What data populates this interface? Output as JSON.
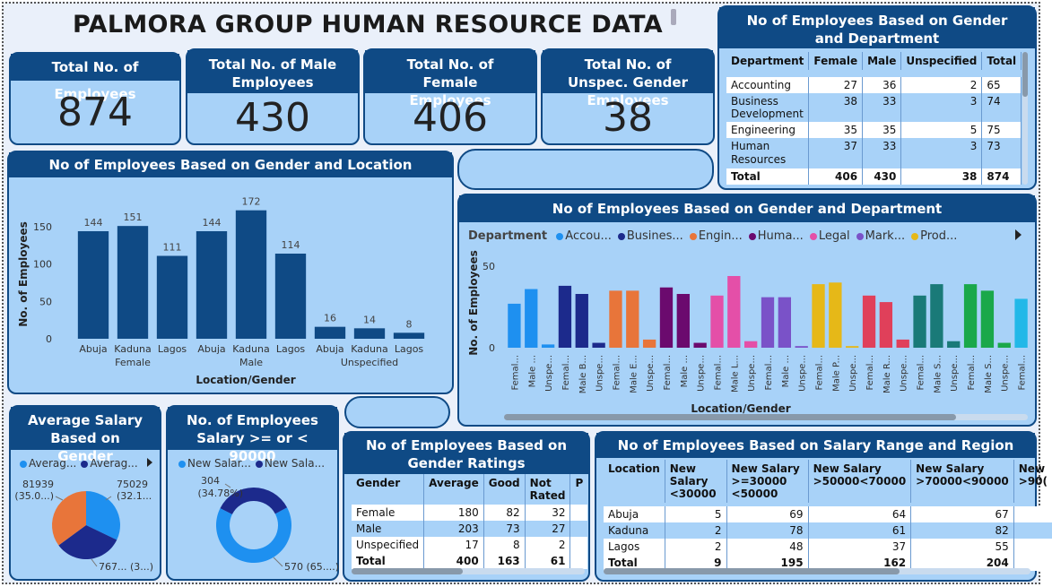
{
  "title": "PALMORA GROUP HUMAN RESOURCE DATA",
  "kpis": [
    {
      "label": "Total No. of Employees",
      "value": "874"
    },
    {
      "label": "Total No. of Male Employees",
      "value": "430"
    },
    {
      "label": "Total No. of Female Employees",
      "value": "406"
    },
    {
      "label": "Total No. of Unspec. Gender Employees",
      "value": "38"
    }
  ],
  "dept_table": {
    "title": "No of Employees Based on Gender and Department",
    "headers": [
      "Department",
      "Female",
      "Male",
      "Unspecified",
      "Total"
    ],
    "rows": [
      [
        "Accounting",
        "27",
        "36",
        "2",
        "65"
      ],
      [
        "Business Development",
        "38",
        "33",
        "3",
        "74"
      ],
      [
        "Engineering",
        "35",
        "35",
        "5",
        "75"
      ],
      [
        "Human Resources",
        "37",
        "33",
        "3",
        "73"
      ]
    ],
    "total": [
      "Total",
      "406",
      "430",
      "38",
      "874"
    ]
  },
  "ratings_table": {
    "title": "No of Employees Based on Gender Ratings",
    "headers": [
      "Gender",
      "Average",
      "Good",
      "Not Rated",
      "P"
    ],
    "rows": [
      [
        "Female",
        "180",
        "82",
        "32"
      ],
      [
        "Male",
        "203",
        "73",
        "27"
      ],
      [
        "Unspecified",
        "17",
        "8",
        "2"
      ]
    ],
    "total": [
      "Total",
      "400",
      "163",
      "61"
    ]
  },
  "salary_region_table": {
    "title": "No of Employees Based on Salary Range and Region",
    "headers": [
      "Location",
      "New Salary <30000",
      "New Salary >=30000 <50000",
      "New Salary >50000<70000",
      "New Salary >70000<90000",
      "New >90("
    ],
    "rows": [
      [
        "Abuja",
        "5",
        "69",
        "64",
        "67"
      ],
      [
        "Kaduna",
        "2",
        "78",
        "61",
        "82"
      ],
      [
        "Lagos",
        "2",
        "48",
        "37",
        "55"
      ]
    ],
    "total": [
      "Total",
      "9",
      "195",
      "162",
      "204"
    ]
  },
  "chart_data": [
    {
      "type": "bar",
      "title": "No of Employees Based on Gender and Location",
      "xlabel": "Location/Gender",
      "ylabel": "No. of Employees",
      "categories": [
        "Abuja",
        "Kaduna",
        "Lagos",
        "Abuja",
        "Kaduna",
        "Lagos",
        "Abuja",
        "Kaduna",
        "Lagos"
      ],
      "groups": [
        "Female",
        "Male",
        "Unspecified"
      ],
      "values": [
        144,
        151,
        111,
        144,
        172,
        114,
        16,
        14,
        8
      ],
      "yticks": [
        "0",
        "50",
        "100",
        "150"
      ],
      "ylim": [
        0,
        180
      ],
      "color": "#0f4a85"
    },
    {
      "type": "bar",
      "title": "No of Employees Based on Gender and Department",
      "xlabel": "Location/Gender",
      "ylabel": "No. of Employees",
      "legend_title": "Department",
      "legend": [
        {
          "name": "Accou...",
          "color": "#1e90f0"
        },
        {
          "name": "Busines...",
          "color": "#1c2a8c"
        },
        {
          "name": "Engin...",
          "color": "#e8753a"
        },
        {
          "name": "Huma...",
          "color": "#6b0a6e"
        },
        {
          "name": "Legal",
          "color": "#e44fa8"
        },
        {
          "name": "Mark...",
          "color": "#7a52c8"
        },
        {
          "name": "Prod...",
          "color": "#e6b818"
        }
      ],
      "categories": [
        "Femal...",
        "Male ...",
        "Unspe...",
        "Femal...",
        "Male B...",
        "Unspe...",
        "Femal...",
        "Male E...",
        "Unspe...",
        "Femal...",
        "Male ...",
        "Unspe...",
        "Femal...",
        "Male L...",
        "Unspe...",
        "Femal...",
        "Male ...",
        "Unspe...",
        "Femal...",
        "Male P...",
        "Unspe...",
        "Femal...",
        "Male R...",
        "Unspe...",
        "Femal...",
        "Male S...",
        "Unspe...",
        "Femal...",
        "Male S...",
        "Unspe...",
        "Femal..."
      ],
      "values": [
        27,
        36,
        2,
        38,
        33,
        3,
        35,
        35,
        5,
        37,
        33,
        3,
        32,
        44,
        4,
        31,
        31,
        1,
        39,
        40,
        1,
        32,
        28,
        5,
        32,
        39,
        4,
        39,
        35,
        3,
        30
      ],
      "colors": [
        "#1e90f0",
        "#1e90f0",
        "#1e90f0",
        "#1c2a8c",
        "#1c2a8c",
        "#1c2a8c",
        "#e8753a",
        "#e8753a",
        "#e8753a",
        "#6b0a6e",
        "#6b0a6e",
        "#6b0a6e",
        "#e44fa8",
        "#e44fa8",
        "#e44fa8",
        "#7a52c8",
        "#7a52c8",
        "#7a52c8",
        "#e6b818",
        "#e6b818",
        "#e6b818",
        "#e0405a",
        "#e0405a",
        "#e0405a",
        "#1a7a78",
        "#1a7a78",
        "#1a7a78",
        "#1aa84a",
        "#1aa84a",
        "#1aa84a",
        "#22b8e8"
      ],
      "yticks": [
        "0",
        "50"
      ],
      "ylim": [
        0,
        55
      ]
    },
    {
      "type": "pie",
      "title": "Average Salary Based on Gender",
      "legend": [
        {
          "name": "Averag...",
          "color": "#1e90f0"
        },
        {
          "name": "Averag...",
          "color": "#1c2a8c"
        }
      ],
      "slices": [
        {
          "value": 75029,
          "label": "75029",
          "pct": "(32.1...",
          "color": "#1e90f0"
        },
        {
          "value": 76700,
          "label": "767...",
          "pct": "(3...)",
          "color": "#1c2a8c"
        },
        {
          "value": 81939,
          "label": "81939",
          "pct": "(35.0...)",
          "color": "#e8753a"
        }
      ]
    },
    {
      "type": "pie",
      "title": "No. of Employees Salary >= or < 90000",
      "legend": [
        {
          "name": "New Salar...",
          "color": "#1e90f0"
        },
        {
          "name": "New Sala...",
          "color": "#1c2a8c"
        }
      ],
      "slices": [
        {
          "value": 570,
          "label": "570",
          "pct": "(65....)",
          "color": "#1e90f0"
        },
        {
          "value": 304,
          "label": "304",
          "pct": "(34.78%)",
          "color": "#1c2a8c"
        }
      ]
    }
  ]
}
